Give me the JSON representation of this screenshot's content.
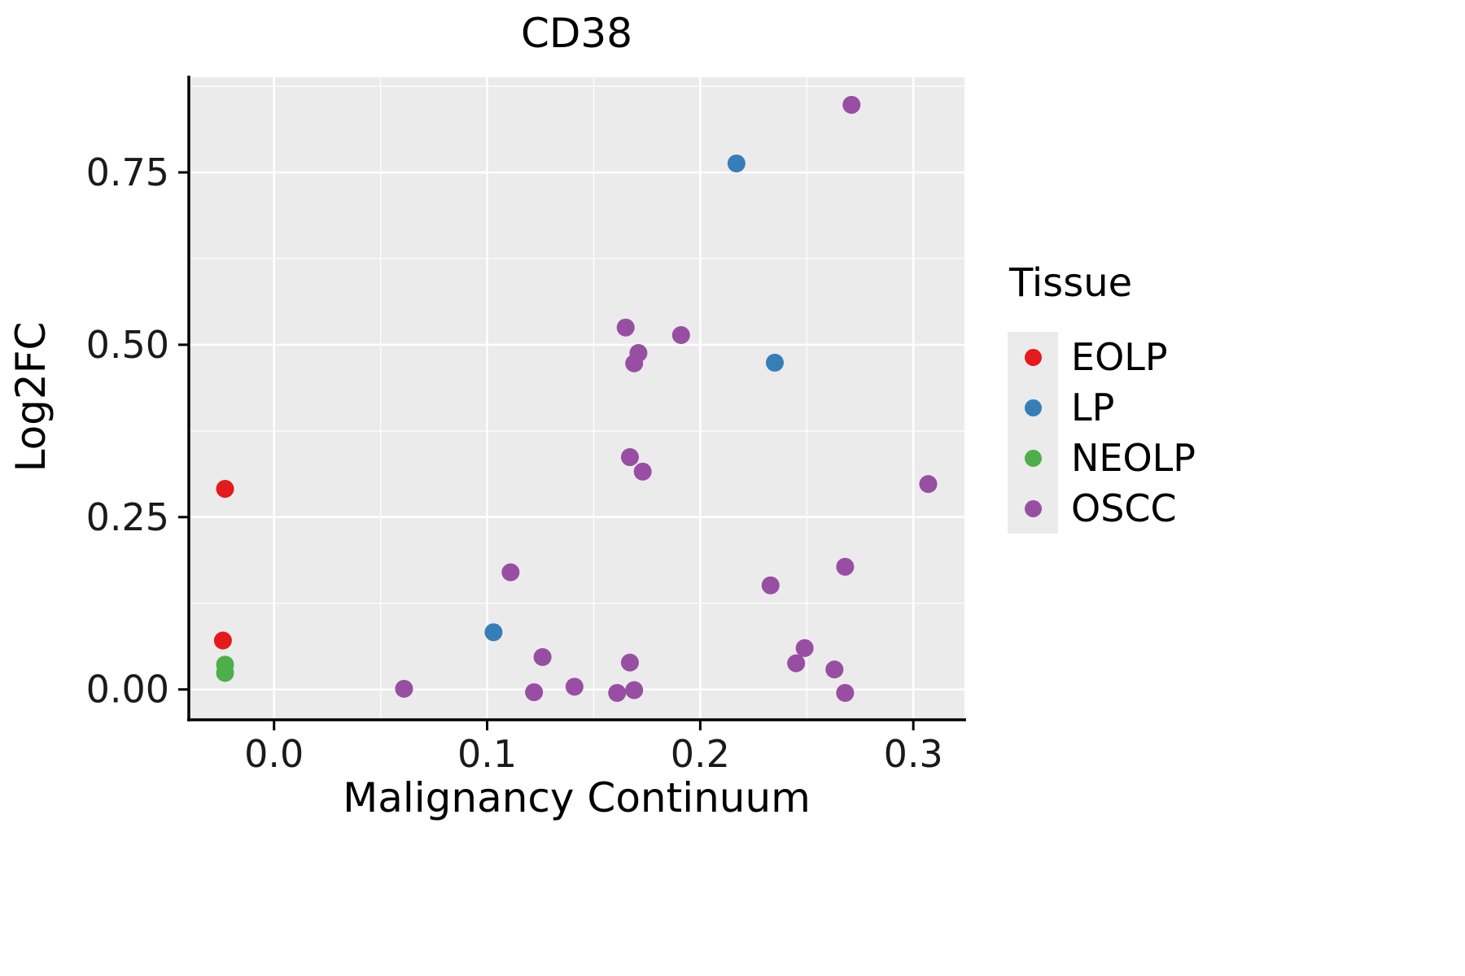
{
  "figure": {
    "title": "CD38",
    "xlabel": "Malignancy Continuum",
    "ylabel": "Log2FC"
  },
  "legend": {
    "title": "Tissue",
    "items": [
      {
        "label": "EOLP",
        "color": "#E41A1C"
      },
      {
        "label": "LP",
        "color": "#377EB8"
      },
      {
        "label": "NEOLP",
        "color": "#4DAF4A"
      },
      {
        "label": "OSCC",
        "color": "#984EA3"
      }
    ]
  },
  "chart_data": {
    "type": "scatter",
    "title": "CD38",
    "xlabel": "Malignancy Continuum",
    "ylabel": "Log2FC",
    "xlim": [
      -0.04,
      0.324
    ],
    "ylim": [
      -0.044,
      0.888
    ],
    "x_ticks": [
      0.0,
      0.1,
      0.2,
      0.3
    ],
    "x_tick_labels": [
      "0.0",
      "0.1",
      "0.2",
      "0.3"
    ],
    "y_ticks": [
      0.0,
      0.25,
      0.5,
      0.75
    ],
    "y_tick_labels": [
      "0.00",
      "0.25",
      "0.50",
      "0.75"
    ],
    "grid": true,
    "panel_bg": "#EBEBEB",
    "grid_color": "#FFFFFF",
    "legend_position": "right",
    "legend_title": "Tissue",
    "series": [
      {
        "name": "EOLP",
        "color": "#E41A1C",
        "points": [
          [
            -0.023,
            0.291
          ],
          [
            -0.024,
            0.071
          ]
        ]
      },
      {
        "name": "LP",
        "color": "#377EB8",
        "points": [
          [
            0.103,
            0.083
          ],
          [
            0.217,
            0.763
          ],
          [
            0.235,
            0.474
          ]
        ]
      },
      {
        "name": "NEOLP",
        "color": "#4DAF4A",
        "points": [
          [
            -0.023,
            0.036
          ],
          [
            -0.023,
            0.024
          ]
        ]
      },
      {
        "name": "OSCC",
        "color": "#984EA3",
        "points": [
          [
            0.061,
            0.001
          ],
          [
            0.111,
            0.17
          ],
          [
            0.122,
            -0.004
          ],
          [
            0.126,
            0.047
          ],
          [
            0.141,
            0.004
          ],
          [
            0.161,
            -0.005
          ],
          [
            0.165,
            0.525
          ],
          [
            0.167,
            0.337
          ],
          [
            0.167,
            0.039
          ],
          [
            0.169,
            0.473
          ],
          [
            0.169,
            -0.001
          ],
          [
            0.171,
            0.488
          ],
          [
            0.173,
            0.316
          ],
          [
            0.191,
            0.514
          ],
          [
            0.233,
            0.151
          ],
          [
            0.245,
            0.038
          ],
          [
            0.249,
            0.06
          ],
          [
            0.263,
            0.029
          ],
          [
            0.268,
            0.178
          ],
          [
            0.268,
            -0.005
          ],
          [
            0.271,
            0.848
          ],
          [
            0.307,
            0.298
          ]
        ]
      }
    ]
  }
}
